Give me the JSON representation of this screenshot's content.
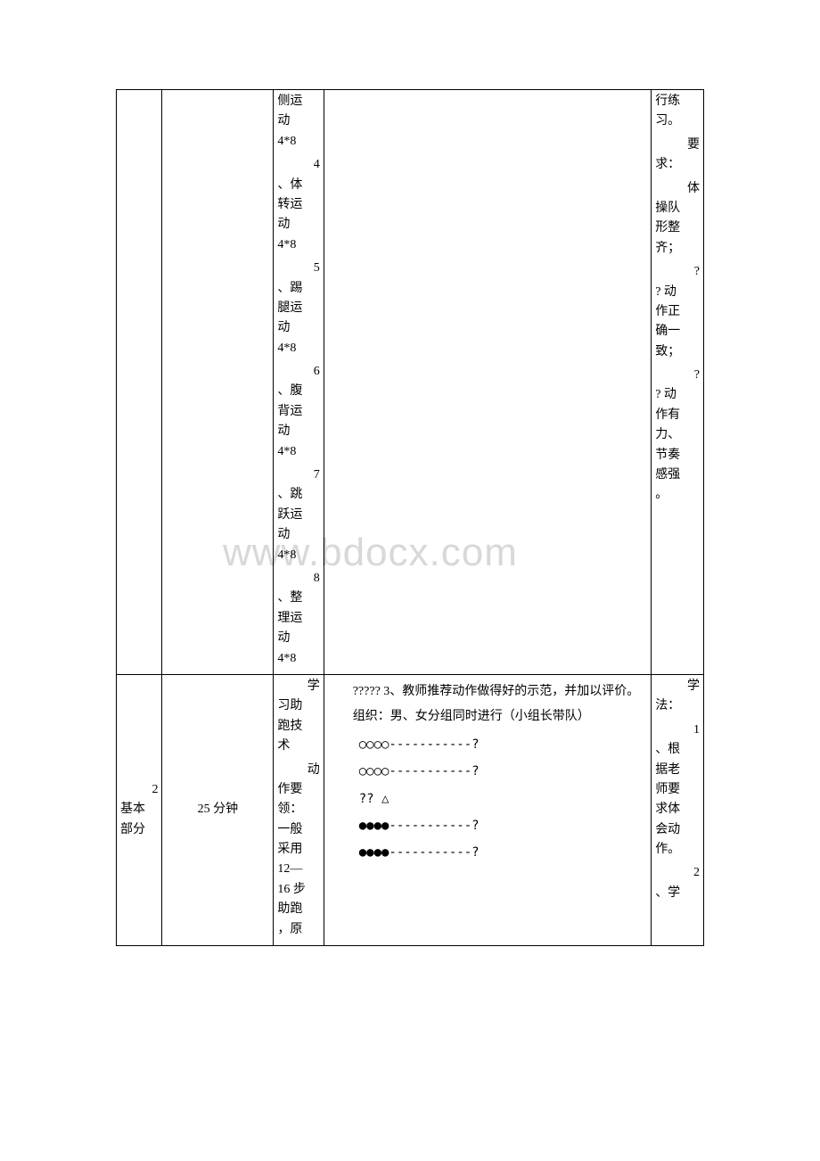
{
  "watermark": "www.bdocx.com",
  "row1": {
    "col3": {
      "item1_line1": "侧运",
      "item1_line2": "动",
      "item1_rep": "4*8",
      "num4": "4",
      "item4_line1": "、体",
      "item4_line2": "转运",
      "item4_line3": "动",
      "item4_rep": "4*8",
      "num5": "5",
      "item5_line1": "、踢",
      "item5_line2": "腿运",
      "item5_line3": "动",
      "item5_rep": "4*8",
      "num6": "6",
      "item6_line1": "、腹",
      "item6_line2": "背运",
      "item6_line3": "动",
      "item6_rep": "4*8",
      "num7": "7",
      "item7_line1": "、跳",
      "item7_line2": "跃运",
      "item7_line3": "动",
      "item7_rep": "4*8",
      "num8": "8",
      "item8_line1": "、整",
      "item8_line2": "理运",
      "item8_line3": "动",
      "item8_rep": "4*8"
    },
    "col5": {
      "l1": "行练",
      "l2": "习。",
      "req_num": "要",
      "req_l1": "求：",
      "body_num": "体",
      "body_l1": "操队",
      "body_l2": "形整",
      "body_l3": "齐；",
      "q1_num": "?",
      "q1_l1": "? 动",
      "q1_l2": "作正",
      "q1_l3": "确一",
      "q1_l4": "致；",
      "q2_num": "?",
      "q2_l1": "? 动",
      "q2_l2": "作有",
      "q2_l3": "力、",
      "q2_l4": "节奏",
      "q2_l5": "感强",
      "q2_l6": "。"
    }
  },
  "row2": {
    "col1": {
      "num": "2",
      "l1": "基本",
      "l2": "部分"
    },
    "col2": "25 分钟",
    "col3": {
      "study_num": "学",
      "l1": "习助",
      "l2": "跑技",
      "l3": "术",
      "action_num": "动",
      "a1": "作要",
      "a2": "领：",
      "a3": "一般",
      "a4": "采用",
      "a5": "12—",
      "a6": "16 步",
      "a7": "助跑",
      "a8": "，原"
    },
    "col4": {
      "p1": "????? 3、教师推荐动作做得好的示范，并加以评价。",
      "p2": "组织：男、女分组同时进行（小组长带队）",
      "s1": "○○○○-----------?",
      "s2": "○○○○-----------?",
      "s3": "?? △",
      "s4": "●●●●-----------?",
      "s5": "●●●●-----------?"
    },
    "col5": {
      "study_num": "学",
      "l1": "法：",
      "n1": "1",
      "n1l1": "、根",
      "n1l2": "据老",
      "n1l3": "师要",
      "n1l4": "求体",
      "n1l5": "会动",
      "n1l6": "作。",
      "n2": "2",
      "n2l1": "、学"
    }
  }
}
